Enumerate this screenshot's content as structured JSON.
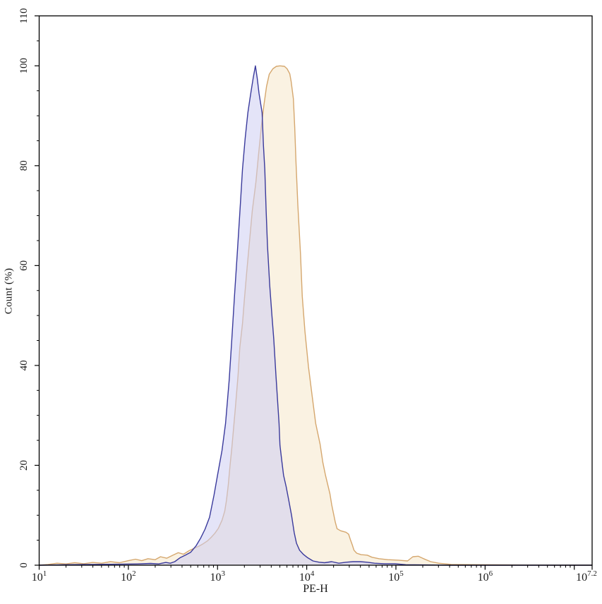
{
  "figure": {
    "background": "#ffffff",
    "axis_color": "#000000",
    "text_color": "#1a1a1a"
  },
  "chart_data": {
    "type": "area",
    "title": "",
    "xlabel": "PE-H",
    "ylabel": "Count (%)",
    "x_scale": "log10",
    "tick_base": "10",
    "x_range_log": [
      1.0,
      7.2
    ],
    "y_range": [
      0,
      110
    ],
    "grid": "off",
    "legend": "none",
    "x_ticks": [
      {
        "log": 1.0,
        "exp": "1"
      },
      {
        "log": 2.0,
        "exp": "2"
      },
      {
        "log": 3.0,
        "exp": "3"
      },
      {
        "log": 4.0,
        "exp": "4"
      },
      {
        "log": 5.0,
        "exp": "5"
      },
      {
        "log": 6.0,
        "exp": "6"
      },
      {
        "log": 7.0,
        "exp": ""
      },
      {
        "log": 7.2,
        "exp": "7.2"
      }
    ],
    "y_ticks": {
      "major": [
        0,
        20,
        40,
        60,
        80,
        100,
        110
      ],
      "minor_step": 5
    },
    "series": [
      {
        "id": "orange-histogram",
        "line_color": "#d5a76e",
        "fill_color": "rgba(246,232,203,0.55)",
        "peak_percent": 100,
        "peak_log_x": 3.7,
        "points": [
          [
            1.0,
            0
          ],
          [
            1.1,
            0.15
          ],
          [
            1.2,
            0.4
          ],
          [
            1.3,
            0.25
          ],
          [
            1.4,
            0.5
          ],
          [
            1.5,
            0.3
          ],
          [
            1.6,
            0.55
          ],
          [
            1.7,
            0.4
          ],
          [
            1.8,
            0.7
          ],
          [
            1.9,
            0.5
          ],
          [
            2.0,
            0.9
          ],
          [
            2.08,
            1.2
          ],
          [
            2.15,
            0.9
          ],
          [
            2.22,
            1.3
          ],
          [
            2.3,
            1.1
          ],
          [
            2.36,
            1.7
          ],
          [
            2.43,
            1.4
          ],
          [
            2.5,
            2.0
          ],
          [
            2.56,
            2.5
          ],
          [
            2.62,
            2.2
          ],
          [
            2.68,
            2.9
          ],
          [
            2.74,
            3.4
          ],
          [
            2.79,
            3.8
          ],
          [
            2.84,
            4.3
          ],
          [
            2.89,
            4.9
          ],
          [
            2.93,
            5.6
          ],
          [
            2.97,
            6.4
          ],
          [
            3.01,
            7.4
          ],
          [
            3.05,
            9.0
          ],
          [
            3.08,
            10.8
          ],
          [
            3.1,
            13.0
          ],
          [
            3.12,
            16.0
          ],
          [
            3.14,
            19.9
          ],
          [
            3.16,
            23.5
          ],
          [
            3.18,
            27.5
          ],
          [
            3.2,
            31.5
          ],
          [
            3.23,
            38.0
          ],
          [
            3.25,
            43.6
          ],
          [
            3.28,
            48.4
          ],
          [
            3.3,
            53.1
          ],
          [
            3.33,
            59.2
          ],
          [
            3.36,
            65.1
          ],
          [
            3.39,
            71.0
          ],
          [
            3.43,
            76.7
          ],
          [
            3.46,
            82.3
          ],
          [
            3.49,
            87.7
          ],
          [
            3.52,
            92.2
          ],
          [
            3.55,
            95.9
          ],
          [
            3.58,
            98.3
          ],
          [
            3.62,
            99.4
          ],
          [
            3.66,
            99.9
          ],
          [
            3.7,
            100
          ],
          [
            3.75,
            99.9
          ],
          [
            3.78,
            99.4
          ],
          [
            3.81,
            98.4
          ],
          [
            3.825,
            96.9
          ],
          [
            3.85,
            93.4
          ],
          [
            3.865,
            87.7
          ],
          [
            3.88,
            80.7
          ],
          [
            3.9,
            72.2
          ],
          [
            3.93,
            62.3
          ],
          [
            3.95,
            53.8
          ],
          [
            3.98,
            46.8
          ],
          [
            4.02,
            39.7
          ],
          [
            4.06,
            34.0
          ],
          [
            4.1,
            28.4
          ],
          [
            4.15,
            24.2
          ],
          [
            4.18,
            20.6
          ],
          [
            4.21,
            18.0
          ],
          [
            4.26,
            14.3
          ],
          [
            4.28,
            12.1
          ],
          [
            4.32,
            8.6
          ],
          [
            4.34,
            7.3
          ],
          [
            4.38,
            6.9
          ],
          [
            4.44,
            6.6
          ],
          [
            4.47,
            6.2
          ],
          [
            4.49,
            5.1
          ],
          [
            4.51,
            4.1
          ],
          [
            4.53,
            3.0
          ],
          [
            4.56,
            2.4
          ],
          [
            4.61,
            2.1
          ],
          [
            4.68,
            2.0
          ],
          [
            4.73,
            1.6
          ],
          [
            4.81,
            1.3
          ],
          [
            4.91,
            1.1
          ],
          [
            5.03,
            1.0
          ],
          [
            5.13,
            0.85
          ],
          [
            5.19,
            1.7
          ],
          [
            5.25,
            1.8
          ],
          [
            5.31,
            1.3
          ],
          [
            5.39,
            0.7
          ],
          [
            5.48,
            0.4
          ],
          [
            5.62,
            0.15
          ],
          [
            5.94,
            0.1
          ],
          [
            6.26,
            0.05
          ],
          [
            6.8,
            0
          ],
          [
            7.2,
            0
          ]
        ]
      },
      {
        "id": "blue-histogram",
        "line_color": "#3a3a9c",
        "fill_color": "rgba(205,205,242,0.55)",
        "peak_percent": 100,
        "peak_log_x": 3.425,
        "points": [
          [
            1.0,
            0
          ],
          [
            1.3,
            0.1
          ],
          [
            1.6,
            0.15
          ],
          [
            1.9,
            0.2
          ],
          [
            2.1,
            0.25
          ],
          [
            2.25,
            0.35
          ],
          [
            2.34,
            0.25
          ],
          [
            2.42,
            0.55
          ],
          [
            2.47,
            0.4
          ],
          [
            2.52,
            0.7
          ],
          [
            2.58,
            1.5
          ],
          [
            2.64,
            2.0
          ],
          [
            2.7,
            2.6
          ],
          [
            2.76,
            3.9
          ],
          [
            2.81,
            5.4
          ],
          [
            2.86,
            7.2
          ],
          [
            2.91,
            9.6
          ],
          [
            2.96,
            14.0
          ],
          [
            3.0,
            18.0
          ],
          [
            3.05,
            23.0
          ],
          [
            3.09,
            28.4
          ],
          [
            3.13,
            37.0
          ],
          [
            3.16,
            45.3
          ],
          [
            3.19,
            54.0
          ],
          [
            3.22,
            62.0
          ],
          [
            3.25,
            70.5
          ],
          [
            3.28,
            79.3
          ],
          [
            3.31,
            85.5
          ],
          [
            3.34,
            90.6
          ],
          [
            3.37,
            94.2
          ],
          [
            3.4,
            97.6
          ],
          [
            3.425,
            100
          ],
          [
            3.445,
            97.5
          ],
          [
            3.465,
            94.5
          ],
          [
            3.5,
            90.6
          ],
          [
            3.515,
            84.0
          ],
          [
            3.53,
            79.3
          ],
          [
            3.545,
            71.0
          ],
          [
            3.56,
            64.0
          ],
          [
            3.585,
            56.0
          ],
          [
            3.61,
            50.0
          ],
          [
            3.63,
            45.3
          ],
          [
            3.655,
            38.0
          ],
          [
            3.69,
            28.4
          ],
          [
            3.7,
            24.0
          ],
          [
            3.72,
            21.0
          ],
          [
            3.74,
            18.0
          ],
          [
            3.77,
            15.7
          ],
          [
            3.8,
            12.9
          ],
          [
            3.83,
            10.0
          ],
          [
            3.86,
            6.5
          ],
          [
            3.885,
            4.4
          ],
          [
            3.92,
            3.0
          ],
          [
            3.96,
            2.2
          ],
          [
            4.01,
            1.5
          ],
          [
            4.07,
            0.85
          ],
          [
            4.14,
            0.6
          ],
          [
            4.2,
            0.5
          ],
          [
            4.28,
            0.7
          ],
          [
            4.36,
            0.4
          ],
          [
            4.44,
            0.6
          ],
          [
            4.52,
            0.7
          ],
          [
            4.6,
            0.7
          ],
          [
            4.68,
            0.6
          ],
          [
            4.76,
            0.4
          ],
          [
            4.87,
            0.3
          ],
          [
            4.99,
            0.3
          ],
          [
            5.11,
            0.1
          ],
          [
            5.31,
            0.05
          ],
          [
            5.6,
            0
          ],
          [
            6.4,
            0
          ],
          [
            7.2,
            0
          ]
        ]
      }
    ]
  }
}
